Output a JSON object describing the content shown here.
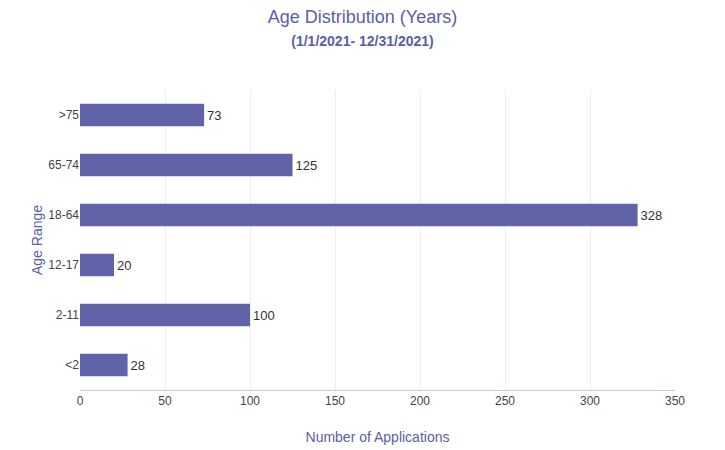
{
  "chart_data": {
    "type": "bar",
    "orientation": "horizontal",
    "title": "Age Distribution (Years)",
    "subtitle": "(1/1/2021- 12/31/2021)",
    "xlabel": "Number of Applications",
    "ylabel": "Age Range",
    "categories": [
      "<2",
      "2-11",
      "12-17",
      "18-64",
      "65-74",
      ">75"
    ],
    "values": [
      28,
      100,
      20,
      328,
      125,
      73
    ],
    "color": "#6063a8",
    "xlim": [
      0,
      350
    ],
    "xticks": [
      0,
      50,
      100,
      150,
      200,
      250,
      300,
      350
    ],
    "grid": true,
    "data_labels": true
  }
}
